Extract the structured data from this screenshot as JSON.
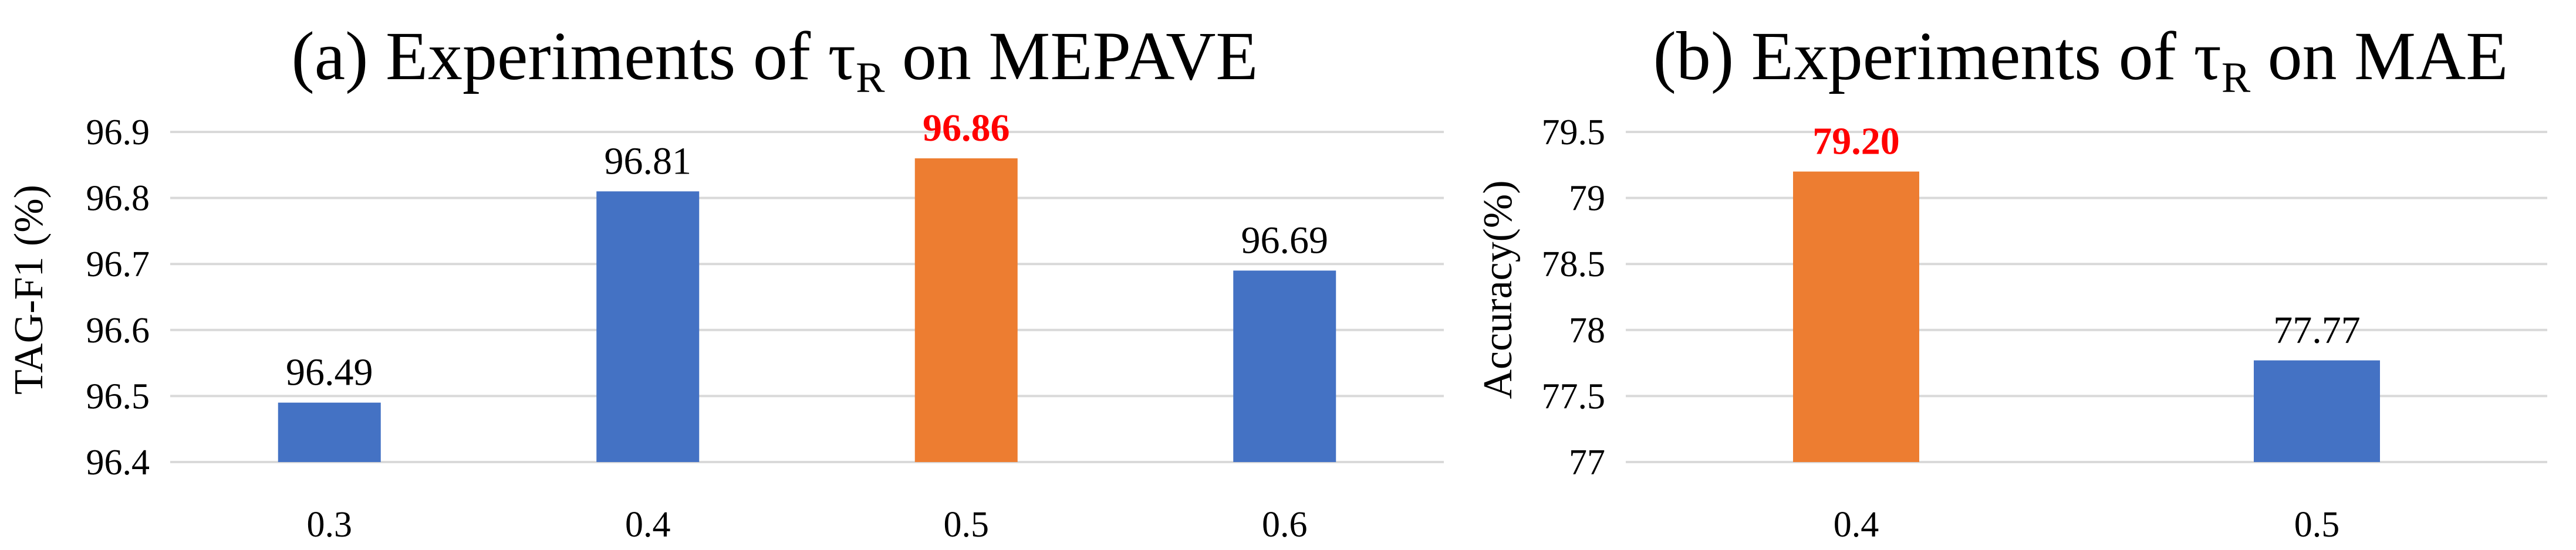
{
  "colors": {
    "default_bar": "#4472c4",
    "highlight_bar": "#ed7d31",
    "highlight_label": "#ff0000",
    "grid": "#d9d9d9"
  },
  "chart_data": [
    {
      "type": "bar",
      "title": "(a) Experiments of τR on MEPAVE",
      "title_main": "(a) Experiments of τ",
      "title_sub": "R",
      "title_tail": " on MEPAVE",
      "xlabel": "",
      "ylabel": "TAG-F1 (%)",
      "categories": [
        "0.3",
        "0.4",
        "0.5",
        "0.6"
      ],
      "values": [
        96.49,
        96.81,
        96.86,
        96.69
      ],
      "value_labels": [
        "96.49",
        "96.81",
        "96.86",
        "96.69"
      ],
      "highlight_index": 2,
      "ylim": [
        96.4,
        96.9
      ],
      "yticks": [
        96.4,
        96.5,
        96.6,
        96.7,
        96.8,
        96.9
      ],
      "ytick_labels": [
        "96.4",
        "96.5",
        "96.6",
        "96.7",
        "96.8",
        "96.9"
      ],
      "grid": true,
      "legend": "none"
    },
    {
      "type": "bar",
      "title": "(b) Experiments of τR on MAE",
      "title_main": "(b) Experiments of τ",
      "title_sub": "R",
      "title_tail": " on MAE",
      "xlabel": "",
      "ylabel": "Accuracy(%)",
      "categories": [
        "0.4",
        "0.5"
      ],
      "values": [
        79.2,
        77.77
      ],
      "value_labels": [
        "79.20",
        "77.77"
      ],
      "highlight_index": 0,
      "ylim": [
        77,
        79.5
      ],
      "yticks": [
        77,
        77.5,
        78,
        78.5,
        79,
        79.5
      ],
      "ytick_labels": [
        "77",
        "77.5",
        "78",
        "78.5",
        "79",
        "79.5"
      ],
      "grid": true,
      "legend": "none"
    }
  ]
}
